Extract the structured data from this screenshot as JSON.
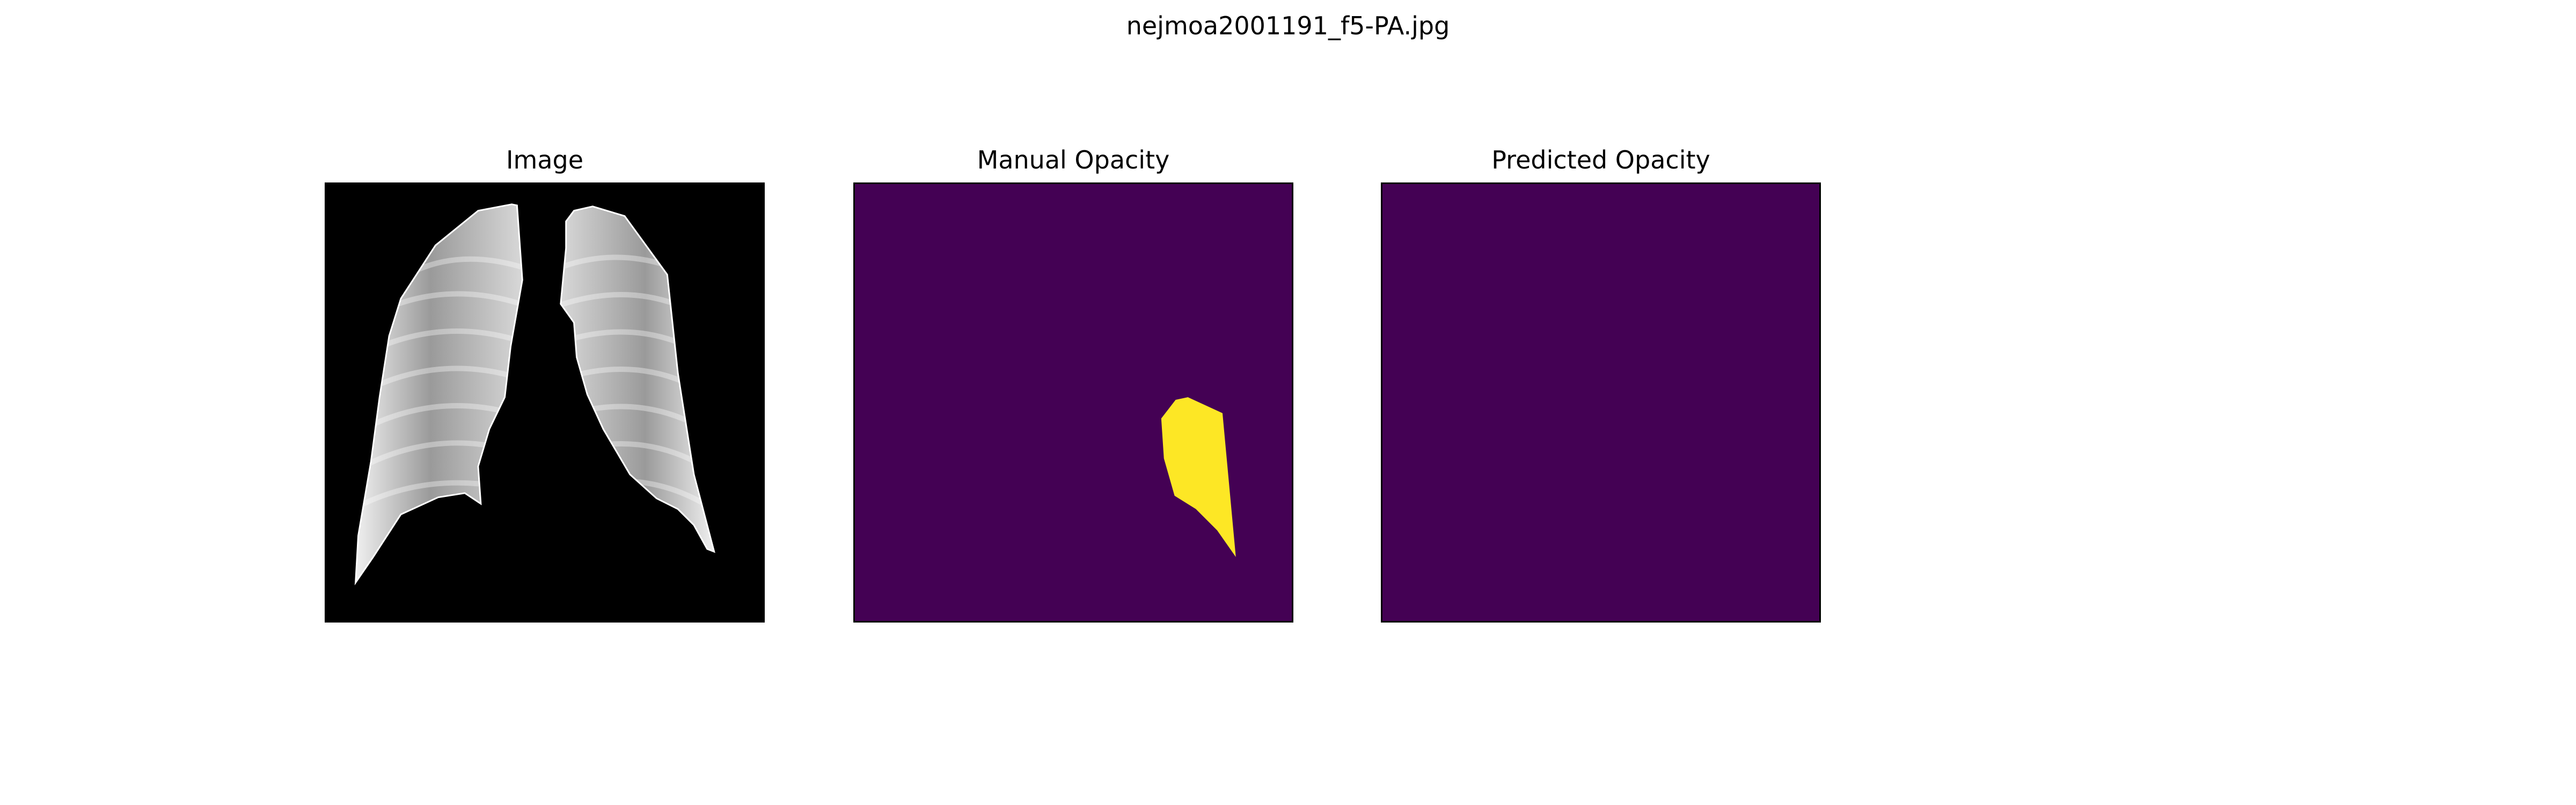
{
  "figure": {
    "title": "nejmoa2001191_f5-PA.jpg"
  },
  "panels": [
    {
      "title": "Image",
      "content": "grayscale chest x-ray lung fields on black background"
    },
    {
      "title": "Manual Opacity",
      "content": "segmentation mask"
    },
    {
      "title": "Predicted Opacity",
      "content": "segmentation mask"
    }
  ],
  "colors": {
    "mask_background": "#440154",
    "mask_foreground": "#fde725",
    "image_background": "#000000",
    "lung_tone": "#b8b8b8"
  }
}
